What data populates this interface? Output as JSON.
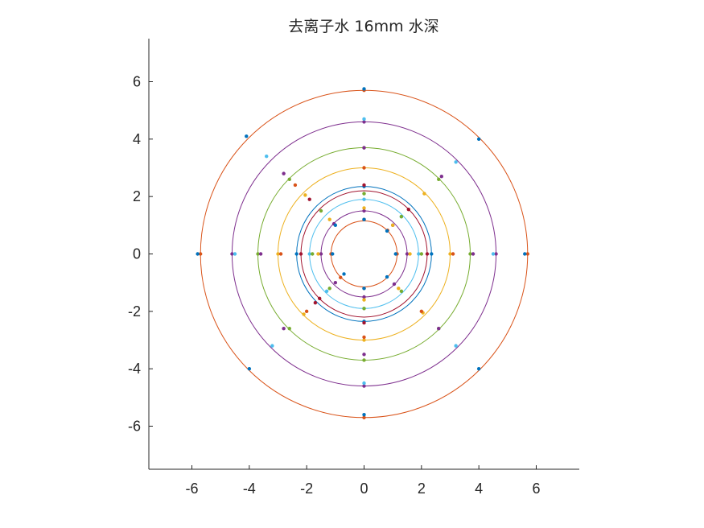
{
  "chart_data": {
    "type": "scatter",
    "title": "去离子水 16mm 水深",
    "xlabel": "",
    "ylabel": "",
    "xlim": [
      -7.5,
      7.5
    ],
    "ylim": [
      -7.5,
      7.5
    ],
    "aspect": "equal",
    "grid": false,
    "xticks": [
      -6,
      -4,
      -2,
      0,
      2,
      4,
      6
    ],
    "yticks": [
      -6,
      -4,
      -2,
      0,
      2,
      4,
      6
    ],
    "series": [
      {
        "color": "#D95319",
        "radius": 1.15,
        "points": [
          [
            0,
            1.2
          ],
          [
            1.15,
            0
          ],
          [
            0,
            -1.2
          ],
          [
            -1.15,
            0
          ],
          [
            0.82,
            0.82
          ],
          [
            -0.82,
            -0.82
          ]
        ]
      },
      {
        "color": "#7E2F8E",
        "radius": 1.5,
        "points": [
          [
            0,
            1.5
          ],
          [
            1.5,
            0
          ],
          [
            0,
            -1.5
          ],
          [
            -1.5,
            0
          ],
          [
            1.0,
            1.0
          ],
          [
            1.05,
            -1.05
          ],
          [
            -1.05,
            1.05
          ],
          [
            -1.0,
            -1.0
          ]
        ]
      },
      {
        "color": "#4DBEEE",
        "radius": 1.9,
        "points": [
          [
            0,
            1.9
          ],
          [
            1.9,
            0
          ],
          [
            0,
            -1.9
          ],
          [
            -1.9,
            0
          ],
          [
            1.3,
            1.3
          ],
          [
            -1.3,
            -1.3
          ]
        ]
      },
      {
        "color": "#0072BD",
        "radius": 2.35,
        "points": [
          [
            0,
            2.35
          ],
          [
            2.35,
            0
          ],
          [
            0,
            -2.35
          ],
          [
            -2.35,
            0
          ]
        ]
      },
      {
        "color": "#A2142F",
        "radius": 2.2,
        "points": [
          [
            0,
            2.4
          ],
          [
            2.2,
            0
          ],
          [
            0,
            -2.4
          ],
          [
            -2.2,
            0
          ],
          [
            1.55,
            1.55
          ],
          [
            -1.55,
            -1.55
          ],
          [
            -1.9,
            1.9
          ],
          [
            -1.7,
            -1.7
          ]
        ]
      },
      {
        "color": "#EDB120",
        "radius": 3.0,
        "points": [
          [
            0,
            3.0
          ],
          [
            3.0,
            0
          ],
          [
            0,
            -3.0
          ],
          [
            -3.0,
            0
          ],
          [
            2.1,
            2.1
          ],
          [
            -2.1,
            -2.1
          ],
          [
            2.05,
            -2.05
          ],
          [
            -2.05,
            2.05
          ]
        ]
      },
      {
        "color": "#77AC30",
        "radius": 3.7,
        "points": [
          [
            0,
            3.7
          ],
          [
            3.7,
            0
          ],
          [
            0,
            -3.7
          ],
          [
            -3.7,
            0
          ],
          [
            2.6,
            2.6
          ],
          [
            2.6,
            -2.6
          ],
          [
            -2.6,
            2.6
          ],
          [
            -2.6,
            -2.6
          ]
        ]
      },
      {
        "color": "#7E2F8E",
        "radius": 4.6,
        "points": [
          [
            0,
            4.6
          ],
          [
            4.6,
            0
          ],
          [
            0,
            -4.6
          ],
          [
            -4.6,
            0
          ]
        ]
      },
      {
        "color": "#D95319",
        "radius": 5.7,
        "points": [
          [
            0,
            5.7
          ],
          [
            5.7,
            0
          ],
          [
            0,
            -5.7
          ],
          [
            -5.7,
            0
          ]
        ]
      },
      {
        "color": "#4DBEEE",
        "radius": null,
        "points": [
          [
            0,
            4.7
          ],
          [
            4.5,
            0
          ],
          [
            0,
            -4.5
          ],
          [
            -4.5,
            0
          ],
          [
            3.2,
            3.2
          ],
          [
            -3.4,
            3.4
          ],
          [
            3.2,
            -3.2
          ],
          [
            -3.2,
            -3.2
          ]
        ]
      },
      {
        "color": "#0072BD",
        "radius": null,
        "points": [
          [
            0,
            5.75
          ],
          [
            5.6,
            0
          ],
          [
            0,
            -5.6
          ],
          [
            -5.8,
            0
          ],
          [
            4.0,
            4.0
          ],
          [
            -4.1,
            4.1
          ],
          [
            4.0,
            -4.0
          ],
          [
            -4.0,
            -4.0
          ]
        ]
      },
      {
        "color": "#7E2F8E",
        "radius": null,
        "points": [
          [
            0,
            3.7
          ],
          [
            3.8,
            0
          ],
          [
            0,
            -3.5
          ],
          [
            -3.6,
            0
          ],
          [
            2.7,
            2.7
          ],
          [
            -2.8,
            2.8
          ],
          [
            2.6,
            -2.6
          ],
          [
            -2.8,
            -2.6
          ]
        ]
      },
      {
        "color": "#D95319",
        "radius": null,
        "points": [
          [
            0,
            3.0
          ],
          [
            3.1,
            0
          ],
          [
            0,
            -2.9
          ],
          [
            -2.9,
            0
          ],
          [
            -2.4,
            2.4
          ],
          [
            2.0,
            -2.0
          ],
          [
            -2.0,
            -2.0
          ]
        ]
      },
      {
        "color": "#77AC30",
        "radius": null,
        "points": [
          [
            0,
            2.1
          ],
          [
            2.0,
            0
          ],
          [
            0,
            -1.9
          ],
          [
            -1.8,
            0
          ],
          [
            -1.5,
            1.5
          ],
          [
            1.3,
            -1.3
          ],
          [
            1.3,
            1.3
          ],
          [
            -1.2,
            -1.2
          ]
        ]
      },
      {
        "color": "#EDB120",
        "radius": null,
        "points": [
          [
            0,
            1.6
          ],
          [
            1.6,
            0
          ],
          [
            0,
            -1.6
          ],
          [
            -1.6,
            0
          ],
          [
            -1.2,
            1.2
          ],
          [
            1.2,
            -1.2
          ],
          [
            1.0,
            1.0
          ]
        ]
      },
      {
        "color": "#0072BD",
        "radius": null,
        "points": [
          [
            0,
            1.2
          ],
          [
            1.1,
            0
          ],
          [
            0,
            -1.2
          ],
          [
            -1.1,
            0
          ],
          [
            -1.0,
            1.0
          ],
          [
            0.8,
            -0.8
          ],
          [
            0.8,
            0.8
          ],
          [
            -0.7,
            -0.7
          ]
        ]
      }
    ]
  }
}
